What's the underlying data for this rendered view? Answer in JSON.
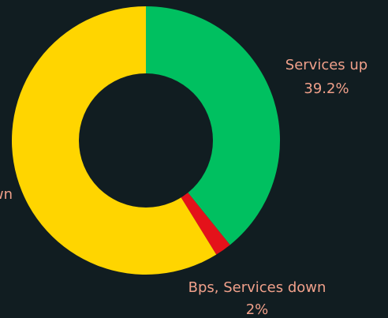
{
  "chart_data": {
    "type": "pie",
    "variant": "donut",
    "title": "",
    "slices": [
      {
        "label": "Services up",
        "value": 39.2,
        "value_label": "39.2%",
        "color": "#00c060"
      },
      {
        "label": "Bps, Services down",
        "value": 2,
        "value_label": "2%",
        "color": "#e4121a"
      },
      {
        "label": "wn",
        "value": 58.8,
        "value_label": "",
        "color": "#ffd500"
      }
    ],
    "start_angle_deg": 0,
    "direction": "clockwise",
    "hole_color": "#111d21",
    "label_color": "#f0a08a"
  }
}
